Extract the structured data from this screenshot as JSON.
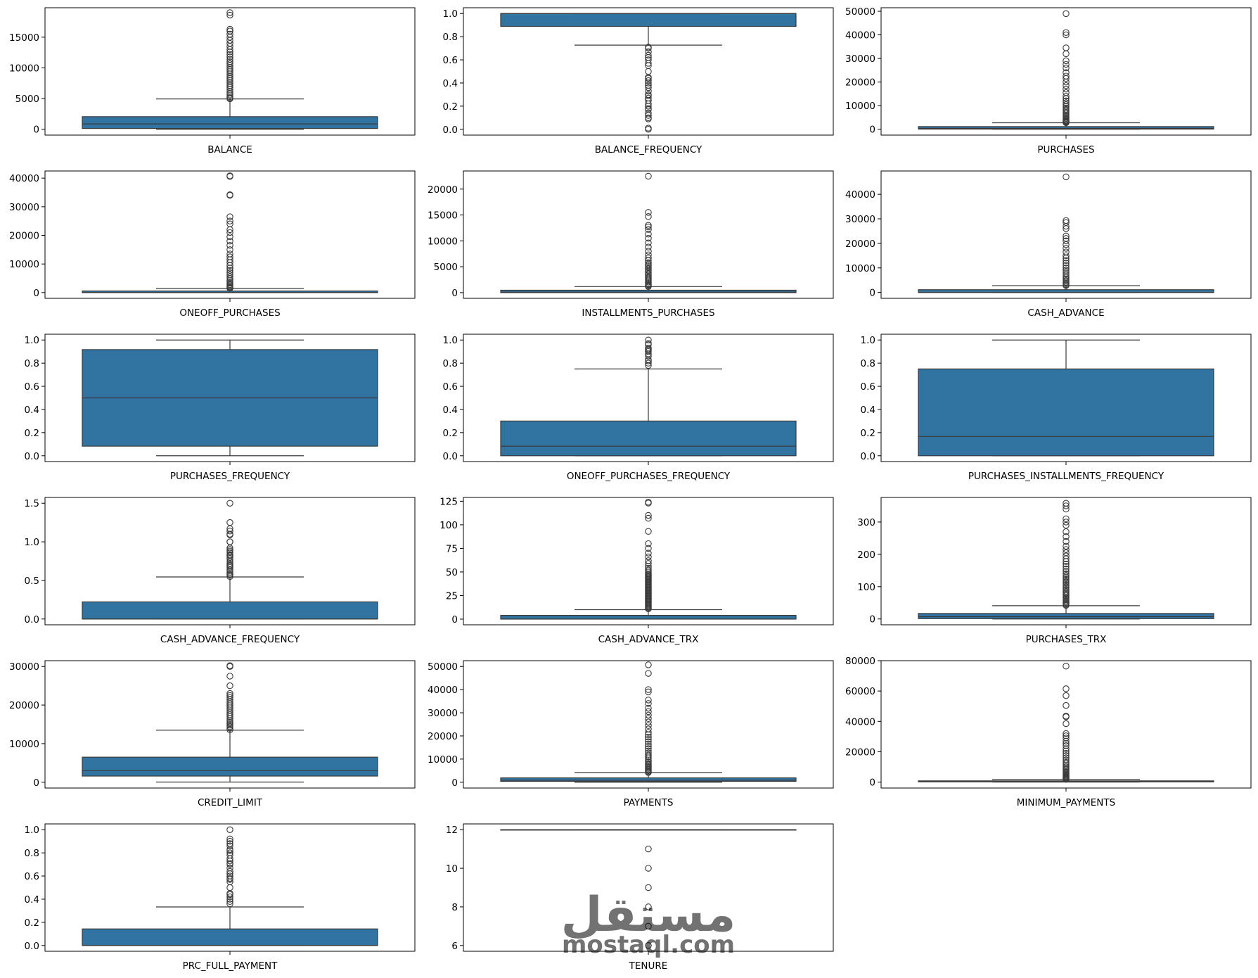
{
  "figure": {
    "style": {
      "box_fill": "#3274a1",
      "line_color": "#3a3a3a",
      "frame_color": "#000000",
      "background": "#ffffff",
      "watermark_color": "#e6e6e6"
    },
    "watermark": {
      "arabic": "مستقل",
      "latin": "mostaql.com"
    }
  },
  "chart_data": [
    {
      "type": "box",
      "xlabel": "BALANCE",
      "ylim": [
        -950,
        19800
      ],
      "yticks": [
        0,
        5000,
        10000,
        15000
      ],
      "ytick_labels": [
        "0",
        "5000",
        "10000",
        "15000"
      ],
      "box": {
        "whisker_low": 0,
        "q1": 130,
        "median": 870,
        "q3": 2050,
        "whisker_high": 4940
      },
      "outliers": [
        4960,
        5100,
        5300,
        5600,
        5900,
        6200,
        6500,
        6800,
        7100,
        7400,
        7700,
        8000,
        8300,
        8600,
        8900,
        9200,
        9500,
        9800,
        10100,
        10400,
        10700,
        11000,
        11400,
        11800,
        12200,
        12600,
        13000,
        13500,
        14000,
        14500,
        15000,
        15500,
        16000,
        16300,
        18600,
        19000
      ]
    },
    {
      "type": "box",
      "xlabel": "BALANCE_FREQUENCY",
      "ylim": [
        -0.05,
        1.05
      ],
      "yticks": [
        0,
        0.2,
        0.4,
        0.6,
        0.8,
        1.0
      ],
      "ytick_labels": [
        "0.0",
        "0.2",
        "0.4",
        "0.6",
        "0.8",
        "1.0"
      ],
      "box": {
        "whisker_low": 0.727,
        "q1": 0.889,
        "median": 1.0,
        "q3": 1.0,
        "whisker_high": 1.0
      },
      "outliers": [
        0.0,
        0.01,
        0.09,
        0.1,
        0.12,
        0.14,
        0.17,
        0.18,
        0.2,
        0.22,
        0.25,
        0.27,
        0.29,
        0.3,
        0.33,
        0.36,
        0.38,
        0.4,
        0.42,
        0.44,
        0.45,
        0.5,
        0.55,
        0.57,
        0.6,
        0.62,
        0.64,
        0.67,
        0.7,
        0.71
      ]
    },
    {
      "type": "box",
      "xlabel": "PURCHASES",
      "ylim": [
        -2500,
        51500
      ],
      "yticks": [
        0,
        10000,
        20000,
        30000,
        40000,
        50000
      ],
      "ytick_labels": [
        "0",
        "10000",
        "20000",
        "30000",
        "40000",
        "50000"
      ],
      "box": {
        "whisker_low": 0,
        "q1": 40,
        "median": 360,
        "q3": 1110,
        "whisker_high": 2720
      },
      "outliers": [
        2750,
        3000,
        3300,
        3600,
        4000,
        4500,
        5000,
        5500,
        6000,
        6600,
        7200,
        7800,
        8400,
        9000,
        9700,
        10400,
        11200,
        12000,
        13000,
        14000,
        15500,
        17000,
        18500,
        20000,
        21500,
        22500,
        24000,
        26000,
        27500,
        29000,
        32000,
        34500,
        40000,
        41000,
        49000
      ]
    },
    {
      "type": "box",
      "xlabel": "ONEOFF_PURCHASES",
      "ylim": [
        -2000,
        42500
      ],
      "yticks": [
        0,
        10000,
        20000,
        30000,
        40000
      ],
      "ytick_labels": [
        "0",
        "10000",
        "20000",
        "30000",
        "40000"
      ],
      "box": {
        "whisker_low": 0,
        "q1": 0,
        "median": 38,
        "q3": 577,
        "whisker_high": 1443
      },
      "outliers": [
        1460,
        1700,
        2000,
        2400,
        2800,
        3300,
        3800,
        4400,
        5000,
        5600,
        6300,
        7000,
        7800,
        8600,
        9500,
        10500,
        11500,
        12500,
        13500,
        15000,
        16500,
        18000,
        19500,
        21000,
        22000,
        24000,
        25000,
        26500,
        34000,
        34200,
        40600,
        40800
      ]
    },
    {
      "type": "box",
      "xlabel": "INSTALLMENTS_PURCHASES",
      "ylim": [
        -1100,
        23500
      ],
      "yticks": [
        0,
        5000,
        10000,
        15000,
        20000
      ],
      "ytick_labels": [
        "0",
        "5000",
        "10000",
        "15000",
        "20000"
      ],
      "box": {
        "whisker_low": 0,
        "q1": 0,
        "median": 89,
        "q3": 468,
        "whisker_high": 1170
      },
      "outliers": [
        1180,
        1350,
        1550,
        1800,
        2050,
        2300,
        2550,
        2800,
        3100,
        3400,
        3700,
        4000,
        4300,
        4600,
        4900,
        5200,
        5500,
        5800,
        6200,
        6700,
        7300,
        8000,
        8800,
        9600,
        10500,
        11300,
        12200,
        12700,
        13000,
        14700,
        15500,
        22500
      ]
    },
    {
      "type": "box",
      "xlabel": "CASH_ADVANCE",
      "ylim": [
        -2400,
        49500
      ],
      "yticks": [
        0,
        10000,
        20000,
        30000,
        40000
      ],
      "ytick_labels": [
        "0",
        "10000",
        "20000",
        "30000",
        "40000"
      ],
      "box": {
        "whisker_low": 0,
        "q1": 0,
        "median": 0,
        "q3": 1114,
        "whisker_high": 2780
      },
      "outliers": [
        2800,
        3200,
        3700,
        4200,
        4800,
        5400,
        6000,
        6700,
        7500,
        8300,
        9100,
        10000,
        11000,
        12000,
        13000,
        14000,
        15000,
        16500,
        18000,
        19500,
        21000,
        22000,
        23000,
        26000,
        27000,
        28500,
        29300,
        47100
      ]
    },
    {
      "type": "box",
      "xlabel": "PURCHASES_FREQUENCY",
      "ylim": [
        -0.05,
        1.05
      ],
      "yticks": [
        0,
        0.2,
        0.4,
        0.6,
        0.8,
        1.0
      ],
      "ytick_labels": [
        "0.0",
        "0.2",
        "0.4",
        "0.6",
        "0.8",
        "1.0"
      ],
      "box": {
        "whisker_low": 0,
        "q1": 0.083,
        "median": 0.5,
        "q3": 0.917,
        "whisker_high": 1.0
      },
      "outliers": []
    },
    {
      "type": "box",
      "xlabel": "ONEOFF_PURCHASES_FREQUENCY",
      "ylim": [
        -0.05,
        1.05
      ],
      "yticks": [
        0,
        0.2,
        0.4,
        0.6,
        0.8,
        1.0
      ],
      "ytick_labels": [
        "0.0",
        "0.2",
        "0.4",
        "0.6",
        "0.8",
        "1.0"
      ],
      "box": {
        "whisker_low": 0,
        "q1": 0,
        "median": 0.083,
        "q3": 0.3,
        "whisker_high": 0.75
      },
      "outliers": [
        0.78,
        0.8,
        0.82,
        0.83,
        0.86,
        0.88,
        0.9,
        0.91,
        0.92,
        0.93,
        0.96,
        0.97,
        1.0
      ]
    },
    {
      "type": "box",
      "xlabel": "PURCHASES_INSTALLMENTS_FREQUENCY",
      "ylim": [
        -0.05,
        1.05
      ],
      "yticks": [
        0,
        0.2,
        0.4,
        0.6,
        0.8,
        1.0
      ],
      "ytick_labels": [
        "0.0",
        "0.2",
        "0.4",
        "0.6",
        "0.8",
        "1.0"
      ],
      "box": {
        "whisker_low": 0,
        "q1": 0,
        "median": 0.167,
        "q3": 0.75,
        "whisker_high": 1.0
      },
      "outliers": []
    },
    {
      "type": "box",
      "xlabel": "CASH_ADVANCE_FREQUENCY",
      "ylim": [
        -0.075,
        1.575
      ],
      "yticks": [
        0,
        0.5,
        1.0,
        1.5
      ],
      "ytick_labels": [
        "0.0",
        "0.5",
        "1.0",
        "1.5"
      ],
      "box": {
        "whisker_low": 0,
        "q1": 0,
        "median": 0,
        "q3": 0.222,
        "whisker_high": 0.545
      },
      "outliers": [
        0.55,
        0.57,
        0.58,
        0.6,
        0.62,
        0.64,
        0.67,
        0.69,
        0.7,
        0.72,
        0.75,
        0.78,
        0.8,
        0.82,
        0.83,
        0.86,
        0.88,
        0.9,
        0.92,
        1.0,
        1.0,
        1.09,
        1.1,
        1.14,
        1.17,
        1.25,
        1.5
      ]
    },
    {
      "type": "box",
      "xlabel": "CASH_ADVANCE_TRX",
      "ylim": [
        -6,
        129
      ],
      "yticks": [
        0,
        25,
        50,
        75,
        100,
        125
      ],
      "ytick_labels": [
        "0",
        "25",
        "50",
        "75",
        "100",
        "125"
      ],
      "box": {
        "whisker_low": 0,
        "q1": 0,
        "median": 0,
        "q3": 4,
        "whisker_high": 10
      },
      "outliers": [
        11,
        12,
        13,
        14,
        15,
        16,
        17,
        18,
        19,
        20,
        21,
        22,
        23,
        24,
        25,
        26,
        27,
        28,
        29,
        30,
        31,
        32,
        33,
        34,
        35,
        36,
        37,
        38,
        39,
        40,
        41,
        42,
        43,
        44,
        45,
        46,
        47,
        48,
        50,
        52,
        54,
        56,
        59,
        62,
        66,
        70,
        75,
        80,
        93,
        107,
        110,
        123,
        124
      ]
    },
    {
      "type": "box",
      "xlabel": "PURCHASES_TRX",
      "ylim": [
        -18,
        376
      ],
      "yticks": [
        0,
        100,
        200,
        300
      ],
      "ytick_labels": [
        "0",
        "100",
        "200",
        "300"
      ],
      "box": {
        "whisker_low": 0,
        "q1": 1,
        "median": 7,
        "q3": 17,
        "whisker_high": 41
      },
      "outliers": [
        42,
        45,
        48,
        52,
        56,
        60,
        64,
        68,
        72,
        76,
        80,
        85,
        90,
        95,
        100,
        105,
        110,
        115,
        120,
        125,
        130,
        135,
        140,
        147,
        155,
        163,
        170,
        178,
        186,
        195,
        205,
        215,
        225,
        240,
        255,
        270,
        290,
        300,
        310,
        340,
        350,
        358
      ]
    },
    {
      "type": "box",
      "xlabel": "CREDIT_LIMIT",
      "ylim": [
        -1500,
        31500
      ],
      "yticks": [
        0,
        10000,
        20000,
        30000
      ],
      "ytick_labels": [
        "0",
        "10000",
        "20000",
        "30000"
      ],
      "box": {
        "whisker_low": 50,
        "q1": 1600,
        "median": 3000,
        "q3": 6500,
        "whisker_high": 13500
      },
      "outliers": [
        13600,
        14000,
        14400,
        14800,
        15200,
        15600,
        16000,
        16500,
        17000,
        17500,
        18000,
        18500,
        19000,
        19500,
        20000,
        20500,
        21000,
        21500,
        22000,
        22500,
        23000,
        25000,
        27500,
        30000,
        30200
      ]
    },
    {
      "type": "box",
      "xlabel": "PAYMENTS",
      "ylim": [
        -2500,
        52500
      ],
      "yticks": [
        0,
        10000,
        20000,
        30000,
        40000,
        50000
      ],
      "ytick_labels": [
        "0",
        "10000",
        "20000",
        "30000",
        "40000",
        "50000"
      ],
      "box": {
        "whisker_low": 0,
        "q1": 384,
        "median": 857,
        "q3": 1901,
        "whisker_high": 4180
      },
      "outliers": [
        4200,
        4600,
        5000,
        5500,
        6000,
        6500,
        7000,
        7500,
        8000,
        8700,
        9400,
        10100,
        10900,
        11700,
        12600,
        13500,
        14500,
        15500,
        16500,
        17500,
        18500,
        19500,
        20500,
        21500,
        23000,
        24500,
        26000,
        27500,
        29000,
        30500,
        32000,
        34000,
        35500,
        39000,
        40000,
        47000,
        50700
      ]
    },
    {
      "type": "box",
      "xlabel": "MINIMUM_PAYMENTS",
      "ylim": [
        -3900,
        80000
      ],
      "yticks": [
        0,
        20000,
        40000,
        60000,
        80000
      ],
      "ytick_labels": [
        "0",
        "20000",
        "40000",
        "60000",
        "80000"
      ],
      "box": {
        "whisker_low": 0,
        "q1": 170,
        "median": 312,
        "q3": 825,
        "whisker_high": 1800
      },
      "outliers": [
        1850,
        2200,
        2600,
        3000,
        3500,
        4000,
        4600,
        5200,
        5900,
        6600,
        7400,
        8200,
        9000,
        10000,
        11000,
        12000,
        13000,
        14500,
        16000,
        17500,
        19000,
        20500,
        22000,
        24000,
        25500,
        27000,
        29000,
        30500,
        32000,
        38500,
        43000,
        43500,
        50500,
        57000,
        61500,
        76400
      ]
    },
    {
      "type": "box",
      "xlabel": "PRC_FULL_PAYMENT",
      "ylim": [
        -0.05,
        1.05
      ],
      "yticks": [
        0,
        0.2,
        0.4,
        0.6,
        0.8,
        1.0
      ],
      "ytick_labels": [
        "0.0",
        "0.2",
        "0.4",
        "0.6",
        "0.8",
        "1.0"
      ],
      "box": {
        "whisker_low": 0,
        "q1": 0,
        "median": 0,
        "q3": 0.143,
        "whisker_high": 0.333
      },
      "outliers": [
        0.36,
        0.38,
        0.4,
        0.42,
        0.44,
        0.45,
        0.5,
        0.55,
        0.57,
        0.58,
        0.6,
        0.62,
        0.64,
        0.67,
        0.7,
        0.71,
        0.73,
        0.75,
        0.78,
        0.8,
        0.82,
        0.83,
        0.86,
        0.88,
        0.9,
        0.92,
        1.0
      ]
    },
    {
      "type": "box",
      "xlabel": "TENURE",
      "ylim": [
        5.7,
        12.3
      ],
      "yticks": [
        6,
        8,
        10,
        12
      ],
      "ytick_labels": [
        "6",
        "8",
        "10",
        "12"
      ],
      "box": {
        "whisker_low": 12,
        "q1": 12,
        "median": 12,
        "q3": 12,
        "whisker_high": 12
      },
      "outliers": [
        6,
        7,
        8,
        9,
        10,
        11
      ]
    }
  ]
}
